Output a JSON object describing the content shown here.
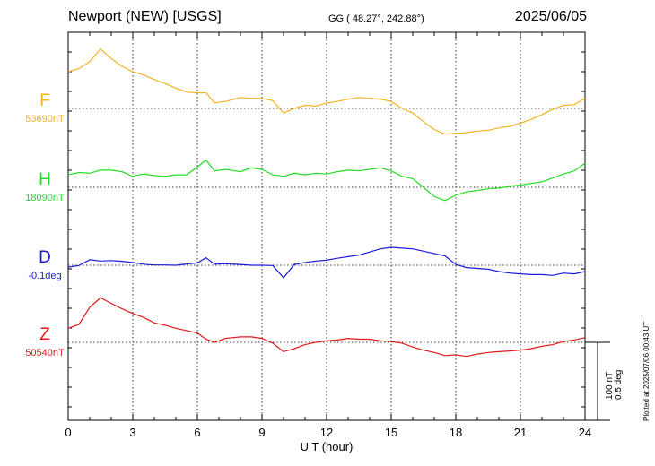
{
  "header": {
    "title": "Newport (NEW)  [USGS]",
    "coords": "GG ( 48.27°, 242.88°)",
    "date": "2025/06/05"
  },
  "plotted_note": "Plotted at 2025/07/06 00:43 UT",
  "scale": {
    "nt": "100 nT",
    "deg": "0.5 deg"
  },
  "colors": {
    "F": "#f5b324",
    "H": "#22dd22",
    "D": "#1a1adc",
    "Z": "#e01a1a"
  },
  "chart_data": {
    "type": "line",
    "xlabel": "U T (hour)",
    "xlim": [
      0,
      24
    ],
    "xticks": [
      0,
      3,
      6,
      9,
      12,
      15,
      18,
      21,
      24
    ],
    "grid": true,
    "y_scale_nt_per_bar": 100,
    "series": [
      {
        "name": "F",
        "baseline_label": "53690nT",
        "baseline": 53690,
        "unit": "nT",
        "points": [
          [
            0,
            53737
          ],
          [
            0.5,
            53741
          ],
          [
            1,
            53750
          ],
          [
            1.5,
            53766
          ],
          [
            2,
            53754
          ],
          [
            2.5,
            53744
          ],
          [
            3,
            53737
          ],
          [
            3.5,
            53733
          ],
          [
            4,
            53727
          ],
          [
            4.5,
            53722
          ],
          [
            5,
            53716
          ],
          [
            5.5,
            53711
          ],
          [
            6,
            53710
          ],
          [
            6.4,
            53710
          ],
          [
            6.8,
            53697
          ],
          [
            7.3,
            53699
          ],
          [
            8,
            53704
          ],
          [
            8.5,
            53703
          ],
          [
            9,
            53703
          ],
          [
            9.5,
            53700
          ],
          [
            10,
            53684
          ],
          [
            10.5,
            53690
          ],
          [
            11,
            53694
          ],
          [
            11.5,
            53693
          ],
          [
            12,
            53697
          ],
          [
            12.5,
            53699
          ],
          [
            13,
            53702
          ],
          [
            13.5,
            53704
          ],
          [
            14,
            53703
          ],
          [
            14.5,
            53702
          ],
          [
            15,
            53699
          ],
          [
            15.5,
            53690
          ],
          [
            16,
            53684
          ],
          [
            16.5,
            53673
          ],
          [
            17,
            53663
          ],
          [
            17.5,
            53657
          ],
          [
            18,
            53658
          ],
          [
            18.5,
            53659
          ],
          [
            19,
            53661
          ],
          [
            19.5,
            53662
          ],
          [
            20,
            53665
          ],
          [
            20.5,
            53667
          ],
          [
            21,
            53671
          ],
          [
            21.5,
            53676
          ],
          [
            22,
            53682
          ],
          [
            22.5,
            53689
          ],
          [
            23,
            53694
          ],
          [
            23.5,
            53695
          ],
          [
            24,
            53703
          ]
        ]
      },
      {
        "name": "H",
        "baseline_label": "18090nT",
        "baseline": 18090,
        "unit": "nT",
        "points": [
          [
            0,
            18106
          ],
          [
            0.5,
            18109
          ],
          [
            1,
            18108
          ],
          [
            1.5,
            18112
          ],
          [
            2,
            18112
          ],
          [
            2.5,
            18110
          ],
          [
            3,
            18104
          ],
          [
            3.5,
            18107
          ],
          [
            4,
            18105
          ],
          [
            4.5,
            18104
          ],
          [
            5,
            18106
          ],
          [
            5.5,
            18106
          ],
          [
            6,
            18116
          ],
          [
            6.4,
            18125
          ],
          [
            6.8,
            18111
          ],
          [
            7.3,
            18113
          ],
          [
            8,
            18110
          ],
          [
            8.5,
            18115
          ],
          [
            9,
            18113
          ],
          [
            9.5,
            18106
          ],
          [
            10,
            18104
          ],
          [
            10.5,
            18108
          ],
          [
            11,
            18106
          ],
          [
            11.5,
            18108
          ],
          [
            12,
            18107
          ],
          [
            12.5,
            18110
          ],
          [
            13,
            18112
          ],
          [
            13.5,
            18111
          ],
          [
            14,
            18113
          ],
          [
            14.5,
            18115
          ],
          [
            15,
            18111
          ],
          [
            15.5,
            18104
          ],
          [
            16,
            18101
          ],
          [
            16.5,
            18090
          ],
          [
            17,
            18078
          ],
          [
            17.5,
            18073
          ],
          [
            18,
            18080
          ],
          [
            18.5,
            18084
          ],
          [
            19,
            18086
          ],
          [
            19.5,
            18088
          ],
          [
            20,
            18089
          ],
          [
            20.5,
            18091
          ],
          [
            21,
            18093
          ],
          [
            21.5,
            18095
          ],
          [
            22,
            18097
          ],
          [
            22.5,
            18102
          ],
          [
            23,
            18107
          ],
          [
            23.5,
            18111
          ],
          [
            24,
            18121
          ]
        ]
      },
      {
        "name": "D",
        "baseline_label": "-0.1deg",
        "baseline": -0.1,
        "unit": "deg",
        "points": [
          [
            0,
            -0.112
          ],
          [
            0.5,
            -0.102
          ],
          [
            1,
            -0.065
          ],
          [
            1.5,
            -0.073
          ],
          [
            2,
            -0.07
          ],
          [
            2.5,
            -0.075
          ],
          [
            3,
            -0.083
          ],
          [
            3.5,
            -0.093
          ],
          [
            4,
            -0.098
          ],
          [
            4.5,
            -0.098
          ],
          [
            5,
            -0.1
          ],
          [
            5.5,
            -0.092
          ],
          [
            6,
            -0.085
          ],
          [
            6.4,
            -0.052
          ],
          [
            6.8,
            -0.093
          ],
          [
            7.3,
            -0.09
          ],
          [
            8,
            -0.095
          ],
          [
            8.5,
            -0.1
          ],
          [
            9,
            -0.1
          ],
          [
            9.5,
            -0.102
          ],
          [
            10,
            -0.18
          ],
          [
            10.5,
            -0.095
          ],
          [
            11,
            -0.083
          ],
          [
            11.5,
            -0.073
          ],
          [
            12,
            -0.068
          ],
          [
            12.5,
            -0.055
          ],
          [
            13,
            -0.045
          ],
          [
            13.5,
            -0.035
          ],
          [
            14,
            -0.015
          ],
          [
            14.5,
            0.005
          ],
          [
            15,
            0.015
          ],
          [
            15.5,
            0.01
          ],
          [
            16,
            0.005
          ],
          [
            16.5,
            -0.01
          ],
          [
            17,
            -0.025
          ],
          [
            17.5,
            -0.04
          ],
          [
            18,
            -0.095
          ],
          [
            18.5,
            -0.115
          ],
          [
            19,
            -0.12
          ],
          [
            19.5,
            -0.125
          ],
          [
            20,
            -0.14
          ],
          [
            20.5,
            -0.15
          ],
          [
            21,
            -0.155
          ],
          [
            21.5,
            -0.16
          ],
          [
            22,
            -0.16
          ],
          [
            22.5,
            -0.165
          ],
          [
            23,
            -0.15
          ],
          [
            23.5,
            -0.155
          ],
          [
            24,
            -0.14
          ]
        ]
      },
      {
        "name": "Z",
        "baseline_label": "50540nT",
        "baseline": 50540,
        "unit": "nT",
        "points": [
          [
            0,
            50558
          ],
          [
            0.5,
            50563
          ],
          [
            1,
            50585
          ],
          [
            1.5,
            50597
          ],
          [
            2,
            50590
          ],
          [
            2.5,
            50583
          ],
          [
            3,
            50577
          ],
          [
            3.5,
            50572
          ],
          [
            4,
            50565
          ],
          [
            4.5,
            50562
          ],
          [
            5,
            50558
          ],
          [
            5.5,
            50555
          ],
          [
            6,
            50552
          ],
          [
            6.4,
            50544
          ],
          [
            6.8,
            50540
          ],
          [
            7.3,
            50545
          ],
          [
            8,
            50547
          ],
          [
            8.5,
            50547
          ],
          [
            9,
            50545
          ],
          [
            9.5,
            50539
          ],
          [
            10,
            50528
          ],
          [
            10.5,
            50532
          ],
          [
            11,
            50537
          ],
          [
            11.5,
            50540
          ],
          [
            12,
            50542
          ],
          [
            12.5,
            50543
          ],
          [
            13,
            50545
          ],
          [
            13.5,
            50544
          ],
          [
            14,
            50544
          ],
          [
            14.5,
            50542
          ],
          [
            15,
            50541
          ],
          [
            15.5,
            50539
          ],
          [
            16,
            50534
          ],
          [
            16.5,
            50530
          ],
          [
            17,
            50527
          ],
          [
            17.5,
            50523
          ],
          [
            18,
            50524
          ],
          [
            18.5,
            50522
          ],
          [
            19,
            50525
          ],
          [
            19.5,
            50527
          ],
          [
            20,
            50528
          ],
          [
            20.5,
            50529
          ],
          [
            21,
            50530
          ],
          [
            21.5,
            50532
          ],
          [
            22,
            50535
          ],
          [
            22.5,
            50537
          ],
          [
            23,
            50541
          ],
          [
            23.5,
            50543
          ],
          [
            24,
            50546
          ]
        ]
      }
    ]
  }
}
